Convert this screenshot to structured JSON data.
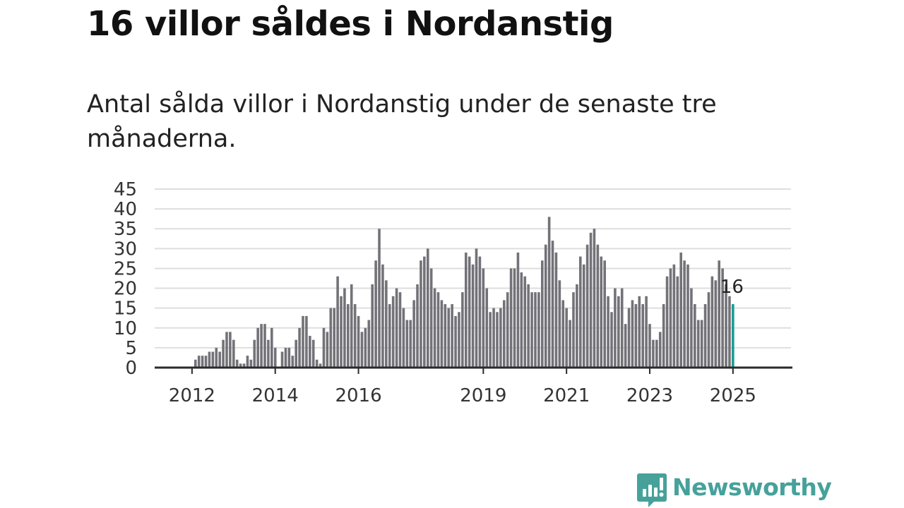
{
  "headline": "16 villor såldes i Nordanstig",
  "subtitle": "Antal sålda villor i Nordanstig under de senaste tre månaderna.",
  "brand": {
    "name": "Newsworthy",
    "icon": "newsworthy-logo-icon",
    "color": "#46a19b"
  },
  "chart_data": {
    "type": "bar",
    "title": "",
    "xlabel": "",
    "ylabel": "",
    "ylim": [
      0,
      45
    ],
    "yticks": [
      0,
      5,
      10,
      15,
      20,
      25,
      30,
      35,
      40,
      45
    ],
    "xticks": [
      "2012",
      "2014",
      "2016",
      "2019",
      "2021",
      "2023",
      "2025"
    ],
    "grid": true,
    "bar_color": "#737278",
    "highlight_color": "#1a9c93",
    "start": "2011-05",
    "end": "2025-01",
    "values": [
      0,
      0,
      0,
      0,
      0,
      0,
      0,
      0,
      0,
      2,
      3,
      3,
      3,
      4,
      4,
      5,
      4,
      7,
      9,
      9,
      7,
      2,
      1,
      1,
      3,
      2,
      7,
      10,
      11,
      11,
      7,
      10,
      5,
      0,
      4,
      5,
      5,
      3,
      7,
      10,
      13,
      13,
      8,
      7,
      2,
      1,
      10,
      9,
      15,
      15,
      23,
      18,
      20,
      16,
      21,
      16,
      13,
      9,
      10,
      12,
      21,
      27,
      35,
      26,
      22,
      16,
      18,
      20,
      19,
      15,
      12,
      12,
      17,
      21,
      27,
      28,
      30,
      25,
      20,
      19,
      17,
      16,
      15,
      16,
      13,
      14,
      19,
      29,
      28,
      26,
      30,
      28,
      25,
      20,
      14,
      15,
      14,
      15,
      17,
      19,
      25,
      25,
      29,
      24,
      23,
      21,
      19,
      19,
      19,
      27,
      31,
      38,
      32,
      29,
      22,
      17,
      15,
      12,
      19,
      21,
      28,
      26,
      31,
      34,
      35,
      31,
      28,
      27,
      18,
      14,
      20,
      18,
      20,
      11,
      15,
      17,
      16,
      18,
      16,
      18,
      11,
      7,
      7,
      9,
      16,
      23,
      25,
      26,
      23,
      29,
      27,
      26,
      20,
      16,
      12,
      12,
      16,
      19,
      23,
      22,
      27,
      25,
      21,
      18,
      16
    ],
    "annotation": {
      "label": "16",
      "value": 16,
      "date": "2025-01"
    }
  }
}
